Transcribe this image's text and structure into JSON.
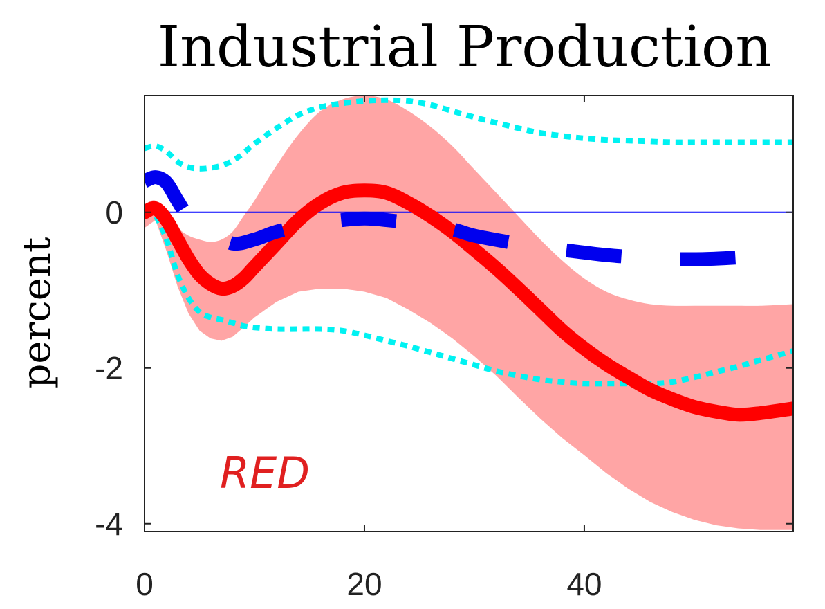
{
  "chart_data": {
    "type": "line",
    "title": "Industrial Production",
    "ylabel": "percent",
    "xlabel": "",
    "xlim": [
      0,
      59
    ],
    "ylim": [
      -4.1,
      1.5
    ],
    "xticks": [
      0,
      20,
      40
    ],
    "yticks": [
      0,
      -2,
      -4
    ],
    "grid": false,
    "annotation": "RED",
    "colors": {
      "red_line": "#ff0000",
      "band_fill": "#ffa5a5",
      "blue_dashed": "#0000ee",
      "cyan_dotted": "#00f2f2",
      "zero_line": "#0000ff",
      "annotation": "#e02020"
    },
    "series": [
      {
        "style": "solid-thick",
        "x": [
          0,
          1,
          2,
          3,
          4,
          5,
          6,
          7,
          8,
          9,
          10,
          12,
          14,
          16,
          18,
          20,
          22,
          24,
          26,
          28,
          30,
          32,
          34,
          36,
          38,
          40,
          42,
          44,
          46,
          48,
          50,
          52,
          54,
          56,
          59
        ],
        "values": [
          0.0,
          0.05,
          -0.1,
          -0.35,
          -0.6,
          -0.8,
          -0.92,
          -0.98,
          -0.95,
          -0.85,
          -0.7,
          -0.4,
          -0.1,
          0.12,
          0.25,
          0.28,
          0.25,
          0.12,
          -0.05,
          -0.25,
          -0.48,
          -0.72,
          -0.98,
          -1.25,
          -1.52,
          -1.75,
          -1.95,
          -2.12,
          -2.28,
          -2.4,
          -2.5,
          -2.56,
          -2.6,
          -2.58,
          -2.52
        ]
      },
      {
        "style": "band",
        "x": [
          0,
          1,
          2,
          3,
          4,
          5,
          6,
          7,
          8,
          9,
          10,
          12,
          14,
          16,
          18,
          20,
          22,
          24,
          26,
          28,
          30,
          32,
          34,
          36,
          38,
          40,
          42,
          44,
          46,
          48,
          50,
          52,
          54,
          56,
          59
        ],
        "lower": [
          -0.2,
          -0.1,
          -0.5,
          -0.95,
          -1.3,
          -1.52,
          -1.62,
          -1.65,
          -1.6,
          -1.48,
          -1.35,
          -1.15,
          -1.02,
          -0.98,
          -0.98,
          -1.02,
          -1.1,
          -1.25,
          -1.42,
          -1.62,
          -1.85,
          -2.1,
          -2.38,
          -2.65,
          -2.9,
          -3.12,
          -3.35,
          -3.55,
          -3.72,
          -3.85,
          -3.95,
          -4.02,
          -4.06,
          -4.08,
          -4.08
        ],
        "upper": [
          0.1,
          0.15,
          -0.05,
          -0.2,
          -0.3,
          -0.35,
          -0.38,
          -0.35,
          -0.25,
          -0.05,
          0.15,
          0.6,
          1.0,
          1.3,
          1.45,
          1.5,
          1.45,
          1.3,
          1.1,
          0.85,
          0.55,
          0.25,
          -0.05,
          -0.35,
          -0.62,
          -0.85,
          -1.02,
          -1.12,
          -1.18,
          -1.2,
          -1.2,
          -1.2,
          -1.2,
          -1.2,
          -1.18
        ]
      },
      {
        "style": "dashed-thick",
        "x": [
          0,
          1,
          2,
          3,
          4,
          6,
          8,
          10,
          12,
          15,
          18,
          20,
          22,
          25,
          28,
          30,
          33,
          36,
          39,
          42,
          45,
          48,
          51,
          54,
          57,
          59
        ],
        "values": [
          0.4,
          0.45,
          0.38,
          0.15,
          -0.05,
          -0.25,
          -0.4,
          -0.35,
          -0.25,
          -0.15,
          -0.1,
          -0.08,
          -0.1,
          -0.15,
          -0.22,
          -0.3,
          -0.38,
          -0.45,
          -0.5,
          -0.55,
          -0.58,
          -0.6,
          -0.6,
          -0.58,
          -0.55,
          -0.5
        ]
      },
      {
        "style": "dotted-upper",
        "x": [
          0,
          1,
          2,
          3,
          4,
          5,
          6,
          7,
          8,
          9,
          10,
          12,
          14,
          16,
          18,
          20,
          22,
          24,
          26,
          28,
          30,
          32,
          34,
          36,
          38,
          40,
          42,
          44,
          46,
          48,
          50,
          52,
          54,
          56,
          59
        ],
        "values": [
          0.82,
          0.85,
          0.78,
          0.65,
          0.58,
          0.56,
          0.57,
          0.6,
          0.66,
          0.76,
          0.88,
          1.08,
          1.25,
          1.35,
          1.4,
          1.43,
          1.44,
          1.43,
          1.38,
          1.3,
          1.22,
          1.15,
          1.08,
          1.02,
          0.98,
          0.95,
          0.93,
          0.92,
          0.91,
          0.9,
          0.9,
          0.9,
          0.9,
          0.9,
          0.9
        ]
      },
      {
        "style": "dotted-lower",
        "x": [
          0,
          1,
          2,
          3,
          4,
          5,
          6,
          7,
          8,
          9,
          10,
          12,
          14,
          16,
          18,
          20,
          22,
          24,
          26,
          28,
          30,
          32,
          34,
          36,
          38,
          40,
          42,
          44,
          46,
          48,
          50,
          52,
          54,
          56,
          59
        ],
        "values": [
          0.0,
          -0.05,
          -0.35,
          -0.8,
          -1.1,
          -1.28,
          -1.35,
          -1.38,
          -1.42,
          -1.46,
          -1.48,
          -1.5,
          -1.5,
          -1.5,
          -1.52,
          -1.58,
          -1.65,
          -1.72,
          -1.8,
          -1.88,
          -1.96,
          -2.04,
          -2.1,
          -2.15,
          -2.18,
          -2.2,
          -2.2,
          -2.2,
          -2.2,
          -2.18,
          -2.12,
          -2.05,
          -1.98,
          -1.9,
          -1.78
        ]
      }
    ]
  }
}
